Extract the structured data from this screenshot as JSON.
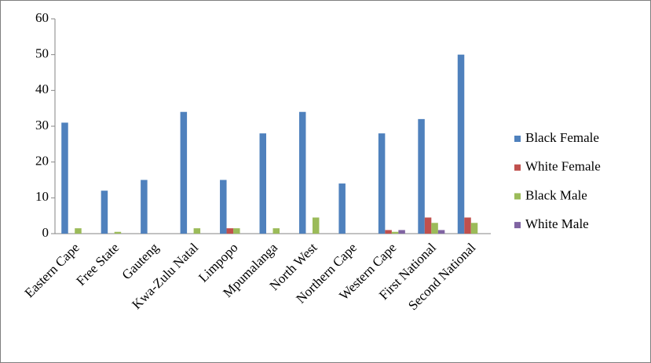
{
  "chart_data": {
    "type": "bar",
    "categories": [
      "Eastern Cape",
      "Free State",
      "Gauteng",
      "Kwa-Zulu Natal",
      "Limpopo",
      "Mpumalanga",
      "North West",
      "Northern Cape",
      "Western Cape",
      "First National",
      "Second National"
    ],
    "series": [
      {
        "name": "Black Female",
        "color": "#4f81bd",
        "values": [
          31,
          12,
          15,
          34,
          15,
          28,
          34,
          14,
          28,
          32,
          50
        ]
      },
      {
        "name": "White Female",
        "color": "#c0504d",
        "values": [
          0,
          0,
          0,
          0,
          1.5,
          0,
          0,
          0,
          1,
          4.5,
          4.5
        ]
      },
      {
        "name": "Black Male",
        "color": "#9bbb59",
        "values": [
          1.5,
          0.5,
          0,
          1.5,
          1.5,
          1.5,
          4.5,
          0,
          0.5,
          3,
          3
        ]
      },
      {
        "name": "White Male",
        "color": "#8064a2",
        "values": [
          0,
          0,
          0,
          0,
          0,
          0,
          0,
          0,
          1,
          1,
          0
        ]
      }
    ],
    "ylim": [
      0,
      60
    ],
    "yticks": [
      0,
      10,
      20,
      30,
      40,
      50,
      60
    ],
    "legend": "right"
  }
}
